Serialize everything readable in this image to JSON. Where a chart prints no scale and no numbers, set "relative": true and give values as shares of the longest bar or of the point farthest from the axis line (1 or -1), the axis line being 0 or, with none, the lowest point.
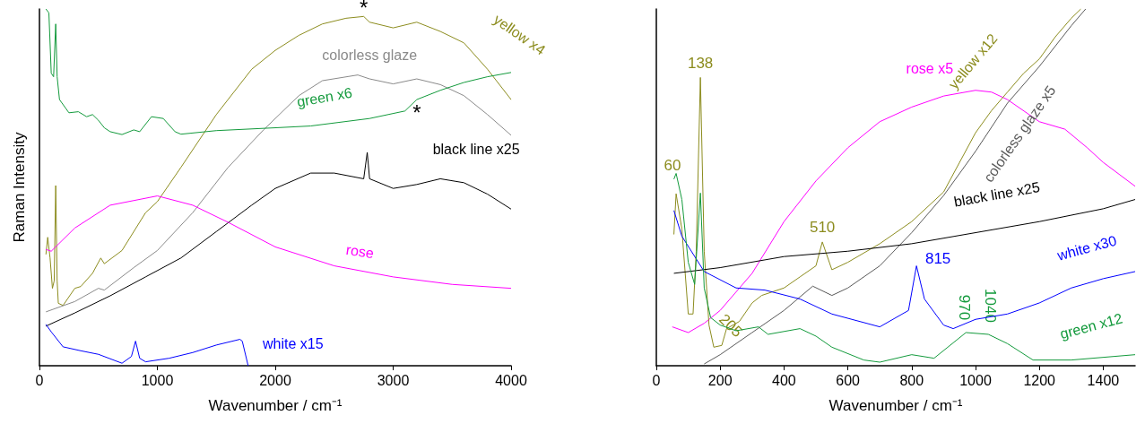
{
  "chart_data": [
    {
      "type": "line",
      "relative": true,
      "xlabel": "Wavenumber / cm⁻¹",
      "ylabel": "Raman Intensity",
      "xlim": [
        0,
        4000
      ],
      "xticks": [
        0,
        1000,
        2000,
        3000,
        4000
      ],
      "series": [
        {
          "name": "yellow x4",
          "color": "#8c8c1e",
          "x": [
            55,
            70,
            90,
            110,
            125,
            138,
            150,
            160,
            200,
            300,
            350,
            450,
            520,
            550,
            700,
            900,
            1000,
            1200,
            1500,
            1800,
            2000,
            2200,
            2400,
            2600,
            2750,
            2800,
            3000,
            3200,
            3400,
            3600,
            3800,
            4000
          ],
          "values": [
            0.312,
            0.36,
            0.302,
            0.217,
            0.238,
            0.505,
            0.238,
            0.175,
            0.169,
            0.217,
            0.222,
            0.259,
            0.302,
            0.286,
            0.323,
            0.429,
            0.46,
            0.556,
            0.704,
            0.831,
            0.884,
            0.926,
            0.958,
            0.974,
            0.979,
            0.963,
            0.947,
            0.963,
            0.937,
            0.905,
            0.831,
            0.746
          ]
        },
        {
          "name": "colorless glaze",
          "color": "#8a8a8a",
          "x": [
            55,
            300,
            500,
            550,
            800,
            1000,
            1300,
            1600,
            1900,
            2200,
            2400,
            2700,
            2800,
            3000,
            3200,
            3400,
            3600,
            3800,
            4000
          ],
          "values": [
            0.151,
            0.18,
            0.217,
            0.212,
            0.275,
            0.323,
            0.429,
            0.556,
            0.661,
            0.757,
            0.799,
            0.815,
            0.804,
            0.79,
            0.804,
            0.788,
            0.757,
            0.704,
            0.646
          ]
        },
        {
          "name": "green x6",
          "color": "#139a3c",
          "x": [
            55,
            80,
            100,
            120,
            138,
            150,
            170,
            250,
            330,
            400,
            450,
            500,
            550,
            600,
            700,
            800,
            850,
            950,
            1050,
            1150,
            1200,
            1500,
            2000,
            2300,
            2800,
            3100,
            3200,
            3400,
            3600,
            3800,
            4000
          ],
          "values": [
            1.0,
            0.989,
            0.82,
            0.81,
            0.958,
            0.81,
            0.746,
            0.709,
            0.712,
            0.698,
            0.704,
            0.688,
            0.667,
            0.656,
            0.648,
            0.661,
            0.656,
            0.698,
            0.693,
            0.656,
            0.649,
            0.659,
            0.667,
            0.672,
            0.693,
            0.714,
            0.746,
            0.772,
            0.794,
            0.81,
            0.822
          ]
        },
        {
          "name": "black line x25",
          "color": "#000000",
          "x": [
            55,
            300,
            600,
            900,
            1200,
            1500,
            1800,
            2000,
            2300,
            2500,
            2750,
            2780,
            2800,
            3000,
            3200,
            3400,
            3600,
            3800,
            4000
          ],
          "values": [
            0.111,
            0.148,
            0.196,
            0.249,
            0.302,
            0.376,
            0.45,
            0.497,
            0.54,
            0.54,
            0.524,
            0.598,
            0.524,
            0.497,
            0.508,
            0.524,
            0.513,
            0.481,
            0.439
          ]
        },
        {
          "name": "rose",
          "color": "#ff00ff",
          "x": [
            55,
            100,
            300,
            600,
            1000,
            1300,
            1600,
            2000,
            2500,
            3000,
            3500,
            4000
          ],
          "values": [
            0.326,
            0.321,
            0.386,
            0.45,
            0.476,
            0.45,
            0.402,
            0.333,
            0.28,
            0.249,
            0.228,
            0.217
          ]
        },
        {
          "name": "white x15",
          "color": "#0000ff",
          "x": [
            55,
            100,
            200,
            350,
            500,
            700,
            780,
            815,
            850,
            900,
            1100,
            1300,
            1500,
            1700,
            1720,
            1770
          ],
          "values": [
            0.116,
            0.095,
            0.053,
            0.042,
            0.032,
            0.007,
            0.026,
            0.069,
            0.021,
            0.011,
            0.021,
            0.037,
            0.058,
            0.074,
            0.069,
            0
          ]
        }
      ],
      "annotations": [
        {
          "text": "*",
          "x": 2750,
          "y": 0.979
        },
        {
          "text": "*",
          "x": 3200,
          "y": 0.746
        }
      ]
    },
    {
      "type": "line",
      "relative": true,
      "xlabel": "Wavenumber / cm⁻¹",
      "xlim": [
        0,
        1500
      ],
      "xticks": [
        0,
        200,
        400,
        600,
        800,
        1000,
        1200,
        1400
      ],
      "series": [
        {
          "name": "rose x5",
          "color": "#ff00ff",
          "x": [
            50,
            100,
            150,
            200,
            300,
            400,
            500,
            600,
            700,
            800,
            900,
            1000,
            1050,
            1100,
            1200,
            1280,
            1350,
            1400,
            1500
          ],
          "values": [
            0.109,
            0.093,
            0.119,
            0.155,
            0.259,
            0.404,
            0.518,
            0.611,
            0.684,
            0.725,
            0.756,
            0.772,
            0.767,
            0.746,
            0.684,
            0.663,
            0.611,
            0.57,
            0.503
          ]
        },
        {
          "name": "yellow x12",
          "color": "#8c8c1e",
          "x": [
            55,
            62,
            80,
            100,
            115,
            125,
            138,
            150,
            165,
            180,
            205,
            220,
            260,
            300,
            330,
            400,
            450,
            500,
            520,
            550,
            600,
            700,
            800,
            900,
            950,
            1000,
            1050,
            1100,
            1150,
            1200,
            1250,
            1300,
            1330
          ],
          "values": [
            0.368,
            0.482,
            0.383,
            0.145,
            0.145,
            0.321,
            0.808,
            0.321,
            0.114,
            0.052,
            0.057,
            0.104,
            0.124,
            0.176,
            0.197,
            0.218,
            0.249,
            0.28,
            0.347,
            0.269,
            0.29,
            0.342,
            0.404,
            0.487,
            0.57,
            0.653,
            0.715,
            0.767,
            0.819,
            0.86,
            0.922,
            0.974,
            1.0
          ]
        },
        {
          "name": "colorless glaze x5",
          "color": "#5a5a5a",
          "x": [
            150,
            200,
            300,
            400,
            490,
            550,
            600,
            700,
            800,
            900,
            1000,
            1100,
            1200,
            1300,
            1345
          ],
          "values": [
            0.005,
            0.031,
            0.093,
            0.155,
            0.223,
            0.197,
            0.218,
            0.28,
            0.373,
            0.477,
            0.601,
            0.736,
            0.839,
            0.953,
            1.0
          ]
        },
        {
          "name": "black line x25",
          "color": "#000000",
          "x": [
            55,
            200,
            400,
            600,
            800,
            1000,
            1200,
            1400,
            1500
          ],
          "values": [
            0.259,
            0.275,
            0.306,
            0.321,
            0.342,
            0.373,
            0.404,
            0.44,
            0.466
          ]
        },
        {
          "name": "white x30",
          "color": "#0000ff",
          "x": [
            55,
            80,
            150,
            250,
            340,
            450,
            550,
            700,
            790,
            815,
            840,
            900,
            930,
            1000,
            1100,
            1200,
            1300,
            1400,
            1500
          ],
          "values": [
            0.435,
            0.363,
            0.264,
            0.218,
            0.212,
            0.187,
            0.145,
            0.109,
            0.155,
            0.28,
            0.187,
            0.114,
            0.104,
            0.13,
            0.145,
            0.176,
            0.218,
            0.244,
            0.264
          ]
        },
        {
          "name": "green x12",
          "color": "#139a3c",
          "x": [
            55,
            62,
            80,
            100,
            120,
            138,
            150,
            170,
            200,
            250,
            320,
            350,
            450,
            500,
            550,
            650,
            700,
            800,
            870,
            970,
            1040,
            1100,
            1180,
            1300,
            1500
          ],
          "values": [
            0.523,
            0.539,
            0.466,
            0.29,
            0.228,
            0.484,
            0.218,
            0.135,
            0.114,
            0.098,
            0.109,
            0.088,
            0.104,
            0.083,
            0.052,
            0.016,
            0.01,
            0.031,
            0.021,
            0.093,
            0.088,
            0.062,
            0.016,
            0.016,
            0.031
          ]
        }
      ],
      "annotations": [
        {
          "text": "60",
          "x": 62,
          "y": 0.482
        },
        {
          "text": "138",
          "x": 138,
          "y": 0.808
        },
        {
          "text": "510",
          "x": 520,
          "y": 0.347
        },
        {
          "text": "205",
          "x": 205,
          "y": 0.057
        },
        {
          "text": "815",
          "x": 815,
          "y": 0.28
        },
        {
          "text": "970",
          "x": 970,
          "y": 0.093
        },
        {
          "text": "1040",
          "x": 1040,
          "y": 0.088
        }
      ]
    }
  ]
}
